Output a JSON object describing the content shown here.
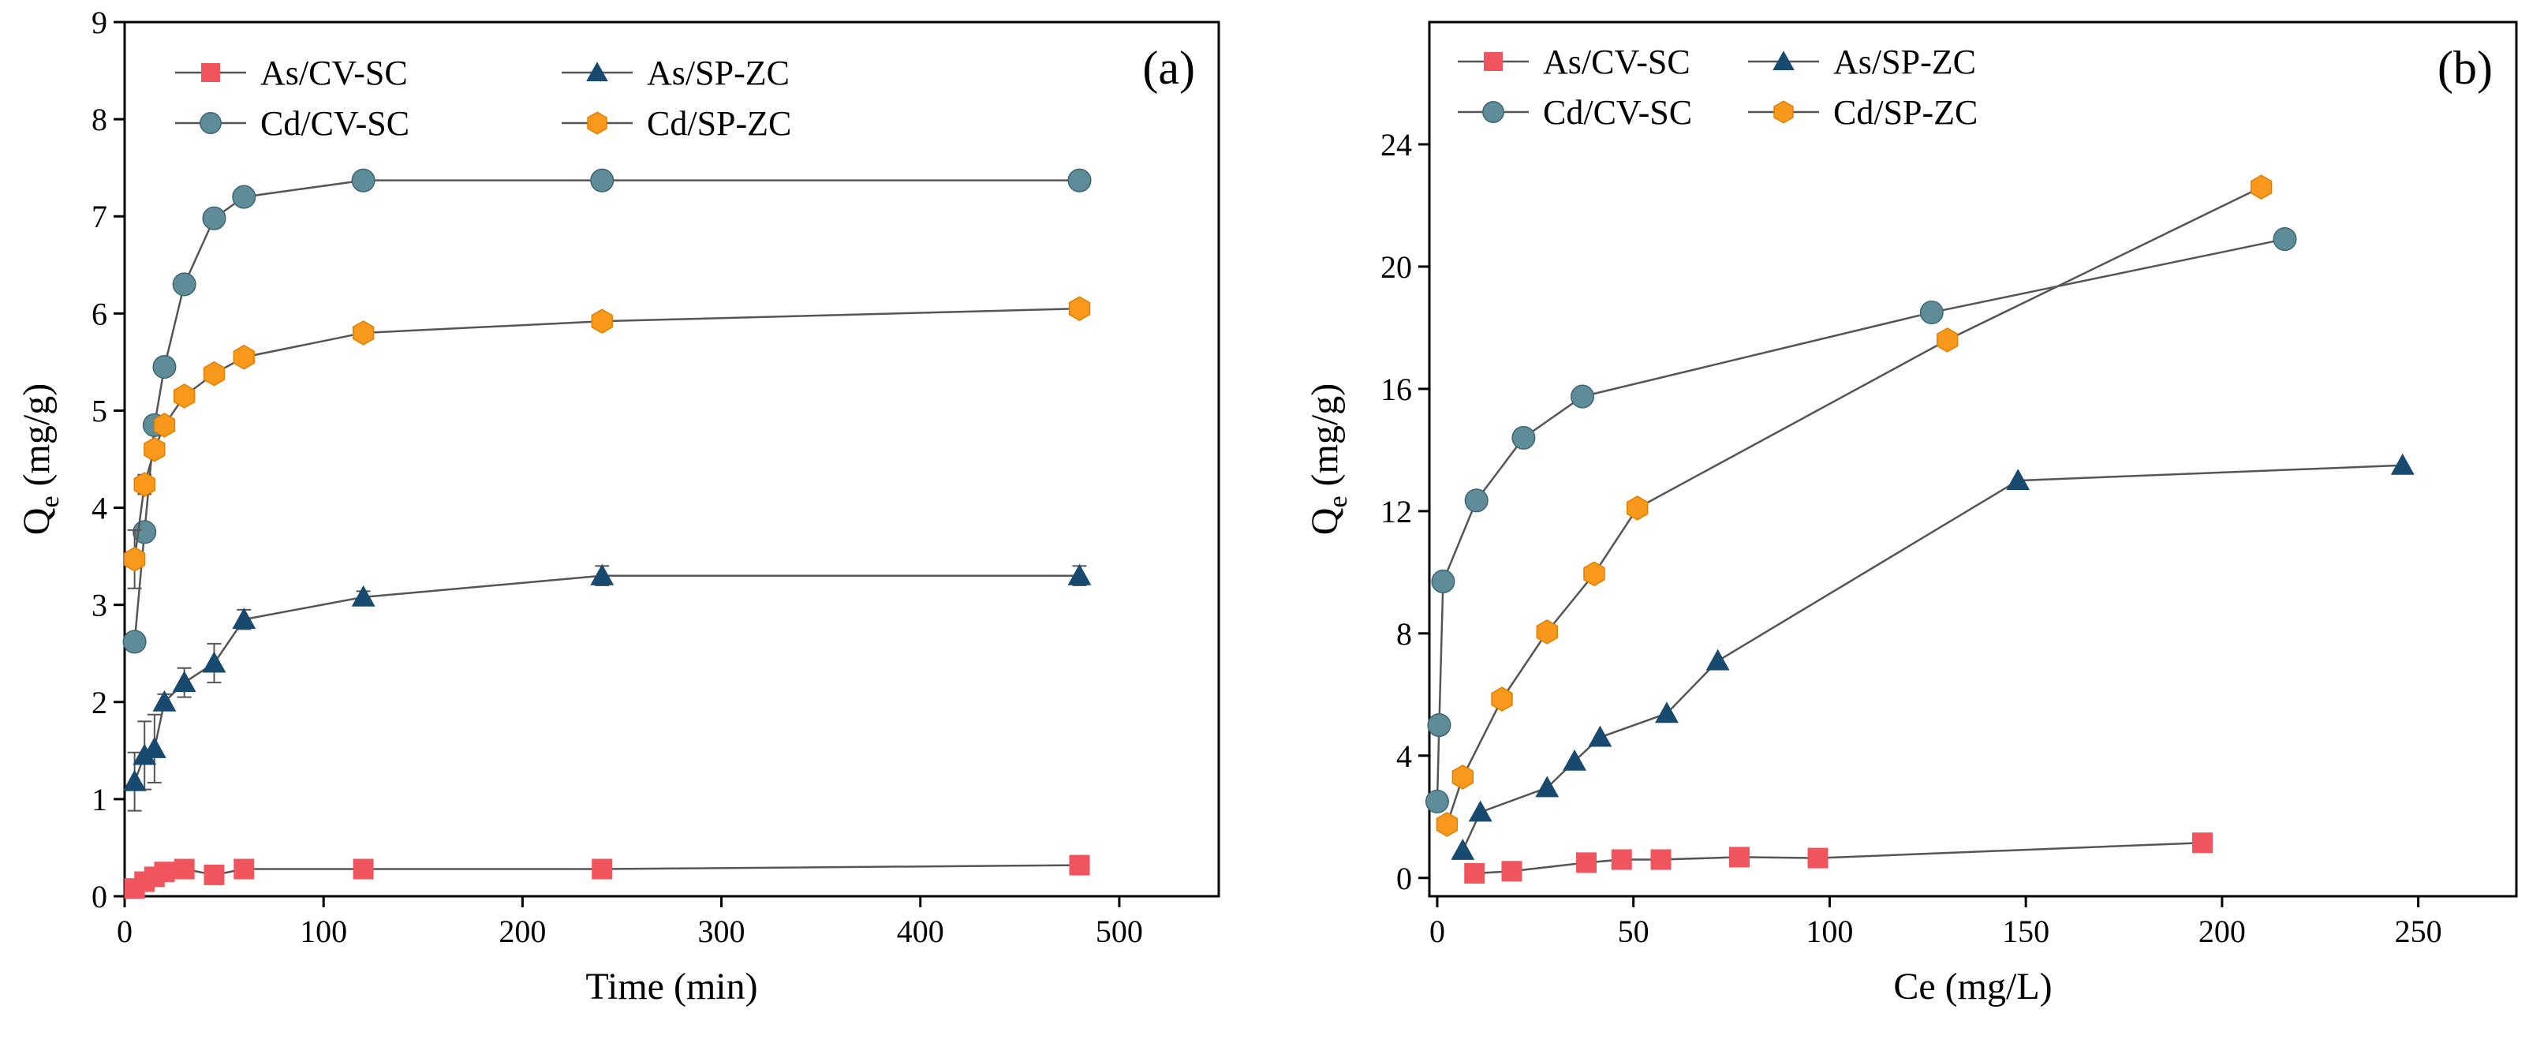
{
  "chart_data": [
    {
      "type": "line",
      "panel_label": "(a)",
      "xlabel": "Time (min)",
      "ylabel_main": "Q",
      "ylabel_sub": "e",
      "ylabel_rest": " (mg/g)",
      "xlim": [
        0,
        550
      ],
      "ylim": [
        0,
        9
      ],
      "xticks": [
        0,
        100,
        200,
        300,
        400,
        500
      ],
      "yticks": [
        0,
        1,
        2,
        3,
        4,
        5,
        6,
        7,
        8,
        9
      ],
      "legend_position": "top-left",
      "series": [
        {
          "name": "As/CV-SC",
          "marker": "square",
          "color": "#f0545c",
          "x": [
            5,
            10,
            15,
            20,
            30,
            45,
            60,
            120,
            240,
            480
          ],
          "y": [
            0.08,
            0.15,
            0.2,
            0.25,
            0.28,
            0.22,
            0.28,
            0.28,
            0.28,
            0.32
          ]
        },
        {
          "name": "As/SP-ZC",
          "marker": "triangle",
          "color": "#174a6e",
          "x": [
            5,
            10,
            15,
            20,
            30,
            45,
            60,
            120,
            240,
            480
          ],
          "y": [
            1.18,
            1.45,
            1.52,
            2.0,
            2.2,
            2.4,
            2.85,
            3.08,
            3.3,
            3.3
          ],
          "err": [
            0.3,
            0.35,
            0.35,
            0.08,
            0.15,
            0.2,
            0.1,
            0.06,
            0.1,
            0.1
          ]
        },
        {
          "name": "Cd/CV-SC",
          "marker": "circle",
          "color": "#5f8c99",
          "x": [
            5,
            10,
            15,
            20,
            30,
            45,
            60,
            120,
            240,
            480
          ],
          "y": [
            2.62,
            3.75,
            4.85,
            5.45,
            6.3,
            6.98,
            7.2,
            7.37,
            7.37,
            7.37
          ]
        },
        {
          "name": "Cd/SP-ZC",
          "marker": "hexagon",
          "color": "#f8981d",
          "x": [
            5,
            10,
            15,
            20,
            30,
            45,
            60,
            120,
            240,
            480
          ],
          "y": [
            3.47,
            4.24,
            4.6,
            4.85,
            5.15,
            5.38,
            5.55,
            5.8,
            5.92,
            6.05
          ],
          "err": [
            0.3,
            0.1,
            0.05,
            0.05,
            0.05,
            0.05,
            0.05,
            0.05,
            0.05,
            0.05
          ]
        }
      ]
    },
    {
      "type": "line",
      "panel_label": "(b)",
      "xlabel": "Ce (mg/L)",
      "ylabel_main": "Q",
      "ylabel_sub": "e",
      "ylabel_rest": " (mg/g)",
      "xlim": [
        -2,
        275
      ],
      "ylim": [
        -0.6,
        28
      ],
      "xticks": [
        0,
        50,
        100,
        150,
        200,
        250
      ],
      "yticks": [
        0,
        4,
        8,
        12,
        16,
        20,
        24
      ],
      "legend_position": "top-left",
      "series": [
        {
          "name": "As/CV-SC",
          "marker": "square",
          "color": "#f0545c",
          "x": [
            9.5,
            19,
            38,
            47,
            57,
            77,
            97,
            195
          ],
          "y": [
            0.15,
            0.22,
            0.5,
            0.6,
            0.6,
            0.68,
            0.65,
            1.15
          ]
        },
        {
          "name": "As/SP-ZC",
          "marker": "triangle",
          "color": "#174a6e",
          "x": [
            6.5,
            11,
            28,
            35,
            41.5,
            58.5,
            71.5,
            148,
            246
          ],
          "y": [
            0.9,
            2.15,
            2.95,
            3.82,
            4.6,
            5.38,
            7.1,
            13.0,
            13.5
          ]
        },
        {
          "name": "Cd/CV-SC",
          "marker": "circle",
          "color": "#5f8c99",
          "x": [
            0,
            0.5,
            1.5,
            10,
            22,
            37,
            126,
            216
          ],
          "y": [
            2.5,
            5.0,
            9.7,
            12.35,
            14.4,
            15.75,
            18.5,
            20.9
          ]
        },
        {
          "name": "Cd/SP-ZC",
          "marker": "hexagon",
          "color": "#f8981d",
          "x": [
            2.5,
            6.5,
            16.5,
            28,
            40,
            51,
            130,
            210
          ],
          "y": [
            1.75,
            3.3,
            5.85,
            8.05,
            9.95,
            12.1,
            17.6,
            22.6
          ]
        }
      ]
    }
  ]
}
